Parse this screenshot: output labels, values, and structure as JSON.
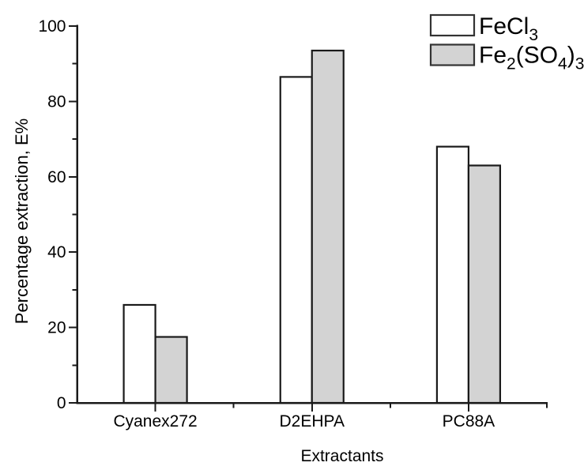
{
  "figure": {
    "background": "#ffffff"
  },
  "chart_data": {
    "type": "bar",
    "title": "",
    "categories": [
      "Cyanex272",
      "D2EHPA",
      "PC88A"
    ],
    "series": [
      {
        "name": "FeCl3",
        "label_parts": [
          {
            "t": "FeCl"
          },
          {
            "t": "3",
            "sub": true
          }
        ],
        "fill": "#ffffff",
        "values": [
          26,
          86.5,
          68
        ]
      },
      {
        "name": "Fe2(SO4)3",
        "label_parts": [
          {
            "t": "Fe"
          },
          {
            "t": "2",
            "sub": true
          },
          {
            "t": "(SO"
          },
          {
            "t": "4",
            "sub": true
          },
          {
            "t": ")"
          },
          {
            "t": "3",
            "sub": true
          }
        ],
        "fill": "#d3d3d3",
        "values": [
          17.5,
          93.5,
          63
        ]
      }
    ],
    "xlabel": "Extractants",
    "ylabel": "Percentage extraction, E%",
    "ylim": [
      0,
      100
    ],
    "ytick_step": 20,
    "yminor_step": 10,
    "ytick_labels": [
      "0",
      "20",
      "40",
      "60",
      "80",
      "100"
    ],
    "grid": false,
    "legend_position": "top-right",
    "colors": {
      "axis": "#1a1a1a",
      "bar_stroke": "#1a1a1a",
      "text": "#000000",
      "legend_swatch_stroke": "#333333",
      "series_fills": [
        "#ffffff",
        "#d3d3d3"
      ]
    }
  }
}
